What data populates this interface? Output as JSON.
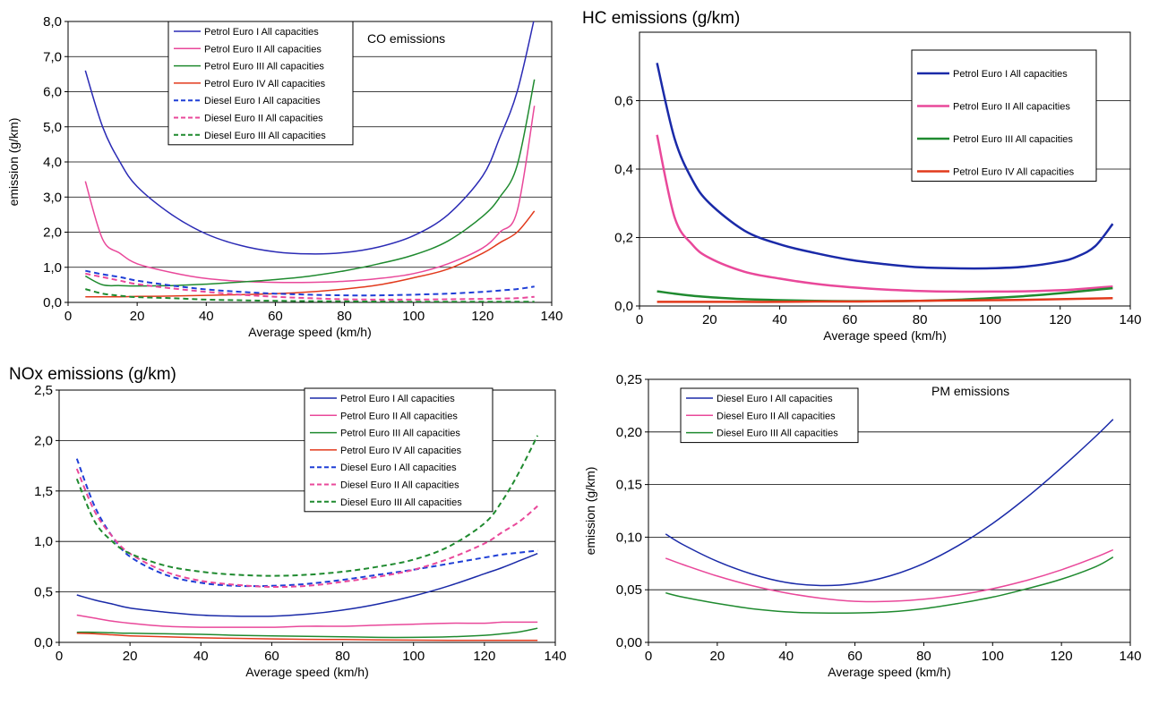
{
  "chart_data": [
    {
      "type": "line",
      "title": "",
      "inner_title": "CO emissions",
      "xlabel": "Average speed (km/h)",
      "ylabel": "emission (g/km)",
      "xlim": [
        0,
        140
      ],
      "ylim": [
        0,
        8
      ],
      "xticks": [
        0,
        20,
        40,
        60,
        80,
        100,
        120,
        140
      ],
      "yticks": [
        0,
        1,
        2,
        3,
        4,
        5,
        6,
        7,
        8
      ],
      "x_tick_labels": [
        "0",
        "20",
        "40",
        "60",
        "80",
        "100",
        "120",
        "140"
      ],
      "y_tick_labels": [
        "0,0",
        "1,0",
        "2,0",
        "3,0",
        "4,0",
        "5,0",
        "6,0",
        "7,0",
        "8,0"
      ],
      "grid": "horizontal",
      "legend_position": "top-center",
      "x": [
        5,
        10,
        15,
        20,
        30,
        40,
        50,
        60,
        70,
        80,
        90,
        100,
        110,
        120,
        125,
        130,
        135
      ],
      "series": [
        {
          "name": "Petrol Euro I All capacities",
          "color": "#2b2bb5",
          "dash": false,
          "width": 1.5,
          "values": [
            6.6,
            5.0,
            4.0,
            3.3,
            2.5,
            1.95,
            1.62,
            1.44,
            1.38,
            1.42,
            1.58,
            1.9,
            2.5,
            3.6,
            4.7,
            6.0,
            8.1
          ]
        },
        {
          "name": "Petrol Euro II All capacities",
          "color": "#e9489a",
          "dash": false,
          "width": 1.5,
          "values": [
            3.45,
            1.8,
            1.4,
            1.1,
            0.85,
            0.68,
            0.6,
            0.57,
            0.57,
            0.6,
            0.68,
            0.82,
            1.1,
            1.55,
            2.0,
            2.6,
            5.6
          ]
        },
        {
          "name": "Petrol Euro III All capacities",
          "color": "#1f8a2f",
          "dash": false,
          "width": 1.5,
          "values": [
            0.75,
            0.5,
            0.48,
            0.47,
            0.48,
            0.52,
            0.58,
            0.65,
            0.75,
            0.9,
            1.1,
            1.35,
            1.75,
            2.45,
            3.0,
            3.9,
            6.35
          ]
        },
        {
          "name": "Petrol Euro IV All capacities",
          "color": "#e23a1c",
          "dash": false,
          "width": 1.5,
          "values": [
            0.16,
            0.16,
            0.16,
            0.17,
            0.18,
            0.2,
            0.22,
            0.25,
            0.3,
            0.38,
            0.5,
            0.7,
            0.95,
            1.4,
            1.7,
            2.0,
            2.6
          ]
        },
        {
          "name": "Diesel Euro I All capacities",
          "color": "#1f3fd6",
          "dash": true,
          "width": 2,
          "values": [
            0.9,
            0.8,
            0.72,
            0.62,
            0.48,
            0.37,
            0.3,
            0.25,
            0.22,
            0.2,
            0.2,
            0.22,
            0.25,
            0.3,
            0.34,
            0.38,
            0.45
          ]
        },
        {
          "name": "Diesel Euro II All capacities",
          "color": "#e9489a",
          "dash": true,
          "width": 2,
          "values": [
            0.82,
            0.72,
            0.62,
            0.52,
            0.4,
            0.3,
            0.22,
            0.16,
            0.12,
            0.09,
            0.08,
            0.08,
            0.09,
            0.1,
            0.11,
            0.12,
            0.16
          ]
        },
        {
          "name": "Diesel Euro III All capacities",
          "color": "#1f8a2f",
          "dash": true,
          "width": 2,
          "values": [
            0.38,
            0.25,
            0.19,
            0.15,
            0.12,
            0.08,
            0.06,
            0.045,
            0.035,
            0.03,
            0.025,
            0.02,
            0.02,
            0.02,
            0.02,
            0.02,
            0.02
          ]
        }
      ]
    },
    {
      "type": "line",
      "title": "HC emissions (g/km)",
      "xlabel": "Average speed (km/h)",
      "ylabel": "",
      "xlim": [
        0,
        140
      ],
      "ylim": [
        0,
        0.8
      ],
      "xticks": [
        0,
        20,
        40,
        60,
        80,
        100,
        120,
        140
      ],
      "yticks": [
        0,
        0.2,
        0.4,
        0.6
      ],
      "x_tick_labels": [
        "0",
        "20",
        "40",
        "60",
        "80",
        "100",
        "120",
        "140"
      ],
      "y_tick_labels": [
        "0,0",
        "0,2",
        "0,4",
        "0,6"
      ],
      "grid": "horizontal",
      "legend_position": "right",
      "x": [
        5,
        10,
        15,
        20,
        30,
        40,
        50,
        60,
        70,
        80,
        90,
        100,
        110,
        120,
        125,
        130,
        135
      ],
      "series": [
        {
          "name": "Petrol Euro I All capacities",
          "color": "#1a2aa8",
          "dash": false,
          "width": 2.5,
          "values": [
            0.71,
            0.49,
            0.37,
            0.3,
            0.22,
            0.18,
            0.155,
            0.135,
            0.122,
            0.113,
            0.11,
            0.11,
            0.115,
            0.13,
            0.145,
            0.175,
            0.24
          ]
        },
        {
          "name": "Petrol Euro II All capacities",
          "color": "#e9489a",
          "dash": false,
          "width": 2.5,
          "values": [
            0.5,
            0.26,
            0.18,
            0.14,
            0.1,
            0.08,
            0.065,
            0.055,
            0.048,
            0.044,
            0.042,
            0.042,
            0.043,
            0.046,
            0.049,
            0.053,
            0.057
          ]
        },
        {
          "name": "Petrol Euro III All capacities",
          "color": "#1f8a2f",
          "dash": false,
          "width": 2.5,
          "values": [
            0.043,
            0.036,
            0.03,
            0.026,
            0.02,
            0.017,
            0.015,
            0.014,
            0.014,
            0.015,
            0.018,
            0.023,
            0.029,
            0.037,
            0.042,
            0.047,
            0.052
          ]
        },
        {
          "name": "Petrol Euro IV All capacities",
          "color": "#e23a1c",
          "dash": false,
          "width": 2.5,
          "values": [
            0.012,
            0.012,
            0.012,
            0.012,
            0.012,
            0.012,
            0.013,
            0.013,
            0.014,
            0.015,
            0.016,
            0.017,
            0.018,
            0.02,
            0.021,
            0.022,
            0.023
          ]
        }
      ]
    },
    {
      "type": "line",
      "title": "NOx emissions (g/km)",
      "xlabel": "Average speed (km/h)",
      "ylabel": "",
      "xlim": [
        0,
        140
      ],
      "ylim": [
        0,
        2.5
      ],
      "xticks": [
        0,
        20,
        40,
        60,
        80,
        100,
        120,
        140
      ],
      "yticks": [
        0,
        0.5,
        1,
        1.5,
        2,
        2.5
      ],
      "x_tick_labels": [
        "0",
        "20",
        "40",
        "60",
        "80",
        "100",
        "120",
        "140"
      ],
      "y_tick_labels": [
        "0,0",
        "0,5",
        "1,0",
        "1,5",
        "2,0",
        "2,5"
      ],
      "grid": "horizontal",
      "legend_position": "top-right",
      "x": [
        5,
        10,
        15,
        20,
        30,
        40,
        50,
        60,
        70,
        80,
        90,
        100,
        110,
        120,
        125,
        130,
        135
      ],
      "series": [
        {
          "name": "Petrol Euro I All capacities",
          "color": "#1a2aa8",
          "dash": false,
          "width": 1.5,
          "values": [
            0.47,
            0.42,
            0.38,
            0.34,
            0.3,
            0.27,
            0.26,
            0.26,
            0.28,
            0.32,
            0.38,
            0.46,
            0.56,
            0.68,
            0.74,
            0.81,
            0.88
          ]
        },
        {
          "name": "Petrol Euro II All capacities",
          "color": "#e9489a",
          "dash": false,
          "width": 1.5,
          "values": [
            0.27,
            0.24,
            0.21,
            0.19,
            0.16,
            0.15,
            0.15,
            0.15,
            0.16,
            0.16,
            0.17,
            0.18,
            0.19,
            0.19,
            0.2,
            0.2,
            0.2
          ]
        },
        {
          "name": "Petrol Euro III All capacities",
          "color": "#1f8a2f",
          "dash": false,
          "width": 1.5,
          "values": [
            0.1,
            0.1,
            0.095,
            0.09,
            0.085,
            0.08,
            0.07,
            0.065,
            0.06,
            0.055,
            0.05,
            0.05,
            0.055,
            0.07,
            0.085,
            0.105,
            0.14
          ]
        },
        {
          "name": "Petrol Euro IV All capacities",
          "color": "#e23a1c",
          "dash": false,
          "width": 1.5,
          "values": [
            0.09,
            0.085,
            0.075,
            0.065,
            0.055,
            0.045,
            0.04,
            0.035,
            0.03,
            0.028,
            0.025,
            0.022,
            0.02,
            0.02,
            0.02,
            0.02,
            0.02
          ]
        },
        {
          "name": "Diesel Euro I All capacities",
          "color": "#1f3fd6",
          "dash": true,
          "width": 2,
          "values": [
            1.82,
            1.35,
            1.05,
            0.85,
            0.67,
            0.59,
            0.56,
            0.56,
            0.58,
            0.62,
            0.67,
            0.72,
            0.78,
            0.84,
            0.87,
            0.89,
            0.91
          ]
        },
        {
          "name": "Diesel Euro II All capacities",
          "color": "#e9489a",
          "dash": true,
          "width": 2,
          "values": [
            1.72,
            1.3,
            1.05,
            0.88,
            0.7,
            0.61,
            0.57,
            0.55,
            0.56,
            0.6,
            0.65,
            0.72,
            0.83,
            0.98,
            1.09,
            1.2,
            1.35
          ]
        },
        {
          "name": "Diesel Euro III All capacities",
          "color": "#1f8a2f",
          "dash": true,
          "width": 2,
          "values": [
            1.62,
            1.2,
            1.0,
            0.88,
            0.76,
            0.7,
            0.67,
            0.66,
            0.67,
            0.7,
            0.75,
            0.82,
            0.95,
            1.18,
            1.4,
            1.7,
            2.05
          ]
        }
      ]
    },
    {
      "type": "line",
      "title": "",
      "inner_title": "PM emissions",
      "xlabel": "Average speed (km/h)",
      "ylabel": "emission (g/km)",
      "xlim": [
        0,
        140
      ],
      "ylim": [
        0,
        0.25
      ],
      "xticks": [
        0,
        20,
        40,
        60,
        80,
        100,
        120,
        140
      ],
      "yticks": [
        0,
        0.05,
        0.1,
        0.15,
        0.2,
        0.25
      ],
      "x_tick_labels": [
        "0",
        "20",
        "40",
        "60",
        "80",
        "100",
        "120",
        "140"
      ],
      "y_tick_labels": [
        "0,00",
        "0,05",
        "0,10",
        "0,15",
        "0,20",
        "0,25"
      ],
      "grid": "horizontal",
      "legend_position": "top-left",
      "x": [
        5,
        10,
        20,
        30,
        40,
        50,
        60,
        70,
        80,
        90,
        100,
        110,
        120,
        130,
        135
      ],
      "series": [
        {
          "name": "Diesel Euro I All capacities",
          "color": "#1a2aa8",
          "dash": false,
          "width": 1.5,
          "values": [
            0.103,
            0.093,
            0.077,
            0.065,
            0.057,
            0.054,
            0.056,
            0.063,
            0.075,
            0.092,
            0.113,
            0.138,
            0.166,
            0.196,
            0.212
          ]
        },
        {
          "name": "Diesel Euro II All capacities",
          "color": "#e9489a",
          "dash": false,
          "width": 1.5,
          "values": [
            0.08,
            0.074,
            0.063,
            0.054,
            0.047,
            0.042,
            0.039,
            0.039,
            0.041,
            0.045,
            0.051,
            0.059,
            0.069,
            0.081,
            0.088
          ]
        },
        {
          "name": "Diesel Euro III All capacities",
          "color": "#1f8a2f",
          "dash": false,
          "width": 1.5,
          "values": [
            0.047,
            0.043,
            0.037,
            0.032,
            0.029,
            0.028,
            0.028,
            0.029,
            0.032,
            0.037,
            0.043,
            0.051,
            0.06,
            0.072,
            0.081
          ]
        }
      ]
    }
  ]
}
